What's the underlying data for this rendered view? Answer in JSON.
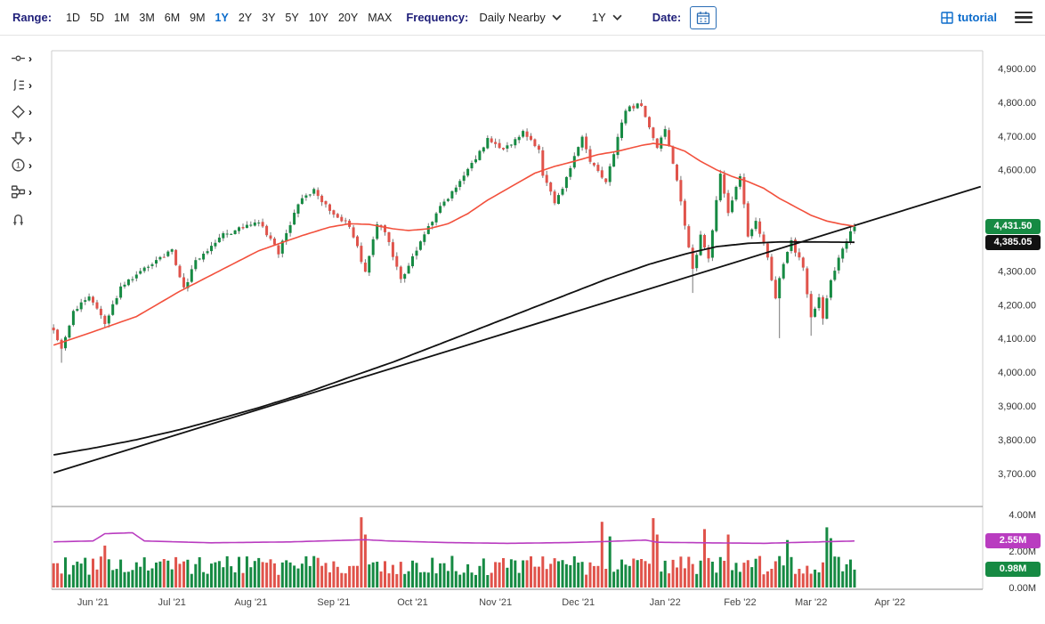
{
  "toolbar": {
    "range_label": "Range:",
    "range_options": [
      "1D",
      "5D",
      "1M",
      "3M",
      "6M",
      "9M",
      "1Y",
      "2Y",
      "3Y",
      "5Y",
      "10Y",
      "20Y",
      "MAX"
    ],
    "range_active": "1Y",
    "frequency_label": "Frequency:",
    "frequency_value": "Daily Nearby",
    "period_value": "1Y",
    "date_label": "Date:",
    "tutorial_label": "tutorial"
  },
  "side_tools": [
    {
      "name": "trendline-tool"
    },
    {
      "name": "indicators-tool"
    },
    {
      "name": "shapes-tool"
    },
    {
      "name": "arrow-annotation-tool"
    },
    {
      "name": "number-annotation-tool"
    },
    {
      "name": "workflow-tool"
    },
    {
      "name": "magnet-snap-tool"
    }
  ],
  "badges": {
    "last_price": {
      "label": "4,431.50",
      "value": 4431.5,
      "color": "#168a43"
    },
    "slow_ma": {
      "label": "4,385.05",
      "value": 4385.05,
      "color": "#111111"
    },
    "volume_ma": {
      "label": "2.55M",
      "value": 2.55,
      "color": "#b93cc0"
    },
    "last_volume": {
      "label": "0.98M",
      "value": 0.98,
      "color": "#168a43"
    }
  },
  "style": {
    "up_color": "#168a43",
    "down_color": "#e0534b",
    "wick_color": "#777777",
    "fast_ma_color": "#f2503c",
    "slow_ma_color": "#111111",
    "trendline_color": "#111111",
    "volume_ma_color": "#b93cc0",
    "accent_blue": "#0b6bcb",
    "label_navy": "#20207a"
  },
  "chart_data": {
    "type": "candlestick",
    "panels": [
      "price",
      "volume"
    ],
    "frequency": "Daily Nearby",
    "range": "1Y",
    "last_close": 4431.5,
    "slow_ma_last": 4385.05,
    "volume_ma_last_m": 2.55,
    "last_volume_m": 0.98,
    "total_days": 204,
    "plot_days": 236,
    "price_domain": [
      3610,
      4950
    ],
    "volume_domain_m": [
      0,
      4
    ],
    "price_keyframes": [
      [
        0,
        4120
      ],
      [
        2,
        4065
      ],
      [
        5,
        4180
      ],
      [
        9,
        4230
      ],
      [
        13,
        4140
      ],
      [
        17,
        4250
      ],
      [
        21,
        4290
      ],
      [
        26,
        4330
      ],
      [
        30,
        4360
      ],
      [
        33,
        4245
      ],
      [
        36,
        4330
      ],
      [
        42,
        4400
      ],
      [
        47,
        4425
      ],
      [
        52,
        4450
      ],
      [
        57,
        4355
      ],
      [
        61,
        4470
      ],
      [
        63,
        4515
      ],
      [
        66,
        4540
      ],
      [
        70,
        4480
      ],
      [
        75,
        4435
      ],
      [
        79,
        4300
      ],
      [
        82,
        4440
      ],
      [
        84,
        4420
      ],
      [
        88,
        4275
      ],
      [
        91,
        4340
      ],
      [
        95,
        4435
      ],
      [
        100,
        4520
      ],
      [
        105,
        4600
      ],
      [
        110,
        4690
      ],
      [
        114,
        4660
      ],
      [
        119,
        4710
      ],
      [
        123,
        4665
      ],
      [
        124,
        4585
      ],
      [
        127,
        4505
      ],
      [
        129,
        4545
      ],
      [
        134,
        4695
      ],
      [
        136,
        4625
      ],
      [
        140,
        4565
      ],
      [
        145,
        4780
      ],
      [
        149,
        4795
      ],
      [
        153,
        4660
      ],
      [
        155,
        4720
      ],
      [
        158,
        4570
      ],
      [
        160,
        4430
      ],
      [
        162,
        4300
      ],
      [
        164,
        4405
      ],
      [
        166,
        4330
      ],
      [
        169,
        4590
      ],
      [
        171,
        4475
      ],
      [
        174,
        4580
      ],
      [
        176,
        4405
      ],
      [
        178,
        4455
      ],
      [
        181,
        4340
      ],
      [
        183,
        4215
      ],
      [
        184,
        4280
      ],
      [
        187,
        4385
      ],
      [
        190,
        4310
      ],
      [
        192,
        4165
      ],
      [
        194,
        4215
      ],
      [
        195,
        4160
      ],
      [
        197,
        4270
      ],
      [
        199,
        4335
      ],
      [
        201,
        4390
      ],
      [
        203,
        4431.5
      ]
    ],
    "wick_events": [
      {
        "day": 2,
        "low": 4028
      },
      {
        "day": 127,
        "low": 4495
      },
      {
        "day": 149,
        "high": 4808
      },
      {
        "day": 162,
        "low": 4235
      },
      {
        "day": 184,
        "low": 4101
      },
      {
        "day": 192,
        "low": 4108
      },
      {
        "day": 195,
        "low": 4141
      }
    ],
    "volume": {
      "base_range_m": [
        0.68,
        1.73
      ],
      "last": 0.98,
      "spikes": [
        [
          13,
          2.3
        ],
        [
          78,
          3.85
        ],
        [
          79,
          2.9
        ],
        [
          139,
          3.6
        ],
        [
          141,
          2.8
        ],
        [
          152,
          3.8
        ],
        [
          153,
          2.9
        ],
        [
          165,
          3.2
        ],
        [
          171,
          2.9
        ],
        [
          186,
          2.6
        ],
        [
          196,
          3.3
        ],
        [
          197,
          2.7
        ]
      ]
    },
    "overlays": {
      "fast_ma": {
        "color": "#f2503c",
        "points": [
          [
            0,
            4080
          ],
          [
            10,
            4120
          ],
          [
            21,
            4165
          ],
          [
            32,
            4240
          ],
          [
            42,
            4300
          ],
          [
            52,
            4360
          ],
          [
            63,
            4405
          ],
          [
            70,
            4430
          ],
          [
            75,
            4440
          ],
          [
            80,
            4438
          ],
          [
            86,
            4425
          ],
          [
            90,
            4420
          ],
          [
            95,
            4425
          ],
          [
            100,
            4440
          ],
          [
            105,
            4470
          ],
          [
            110,
            4510
          ],
          [
            116,
            4550
          ],
          [
            122,
            4590
          ],
          [
            127,
            4610
          ],
          [
            132,
            4625
          ],
          [
            138,
            4645
          ],
          [
            143,
            4655
          ],
          [
            149,
            4672
          ],
          [
            152,
            4678
          ],
          [
            156,
            4672
          ],
          [
            160,
            4655
          ],
          [
            164,
            4625
          ],
          [
            168,
            4600
          ],
          [
            172,
            4580
          ],
          [
            176,
            4565
          ],
          [
            180,
            4545
          ],
          [
            184,
            4515
          ],
          [
            188,
            4490
          ],
          [
            192,
            4465
          ],
          [
            196,
            4448
          ],
          [
            200,
            4438
          ],
          [
            203,
            4433
          ]
        ]
      },
      "slow_ma": {
        "color": "#111111",
        "points": [
          [
            0,
            3755
          ],
          [
            10,
            3775
          ],
          [
            21,
            3800
          ],
          [
            32,
            3830
          ],
          [
            43,
            3865
          ],
          [
            52,
            3895
          ],
          [
            63,
            3935
          ],
          [
            75,
            3985
          ],
          [
            86,
            4030
          ],
          [
            96,
            4075
          ],
          [
            107,
            4125
          ],
          [
            118,
            4175
          ],
          [
            129,
            4225
          ],
          [
            140,
            4275
          ],
          [
            151,
            4320
          ],
          [
            160,
            4350
          ],
          [
            168,
            4372
          ],
          [
            176,
            4382
          ],
          [
            184,
            4386
          ],
          [
            192,
            4386
          ],
          [
            203,
            4385.05
          ]
        ]
      },
      "trendline": {
        "color": "#111111",
        "points": [
          [
            0,
            3702
          ],
          [
            235,
            4550
          ]
        ]
      },
      "volume_sma": {
        "color": "#b93cc0",
        "points": [
          [
            0,
            2.5
          ],
          [
            10,
            2.55
          ],
          [
            13,
            2.95
          ],
          [
            20,
            3.0
          ],
          [
            23,
            2.55
          ],
          [
            40,
            2.45
          ],
          [
            60,
            2.5
          ],
          [
            79,
            2.62
          ],
          [
            85,
            2.55
          ],
          [
            100,
            2.46
          ],
          [
            115,
            2.42
          ],
          [
            130,
            2.46
          ],
          [
            140,
            2.52
          ],
          [
            150,
            2.6
          ],
          [
            153,
            2.48
          ],
          [
            165,
            2.45
          ],
          [
            180,
            2.42
          ],
          [
            190,
            2.48
          ],
          [
            200,
            2.53
          ],
          [
            203,
            2.55
          ]
        ]
      }
    },
    "axes": {
      "price_ticks": [
        {
          "value": 4900,
          "label": "4,900.00"
        },
        {
          "value": 4800,
          "label": "4,800.00"
        },
        {
          "value": 4700,
          "label": "4,700.00"
        },
        {
          "value": 4600,
          "label": "4,600.00"
        },
        {
          "value": 4300,
          "label": "4,300.00"
        },
        {
          "value": 4200,
          "label": "4,200.00"
        },
        {
          "value": 4100,
          "label": "4,100.00"
        },
        {
          "value": 4000,
          "label": "4,000.00"
        },
        {
          "value": 3900,
          "label": "3,900.00"
        },
        {
          "value": 3800,
          "label": "3,800.00"
        },
        {
          "value": 3700,
          "label": "3,700.00"
        }
      ],
      "volume_ticks": [
        {
          "value": 4,
          "label": "4.00M"
        },
        {
          "value": 2,
          "label": "2.00M"
        },
        {
          "value": 0,
          "label": "0.00M"
        }
      ],
      "months": [
        {
          "label": "Jun '21",
          "day": 10
        },
        {
          "label": "Jul '21",
          "day": 30
        },
        {
          "label": "Aug '21",
          "day": 50
        },
        {
          "label": "Sep '21",
          "day": 71
        },
        {
          "label": "Oct '21",
          "day": 91
        },
        {
          "label": "Nov '21",
          "day": 112
        },
        {
          "label": "Dec '21",
          "day": 133
        },
        {
          "label": "Jan '22",
          "day": 155
        },
        {
          "label": "Feb '22",
          "day": 174
        },
        {
          "label": "Mar '22",
          "day": 192
        },
        {
          "label": "Apr '22",
          "day": 212
        }
      ]
    }
  }
}
